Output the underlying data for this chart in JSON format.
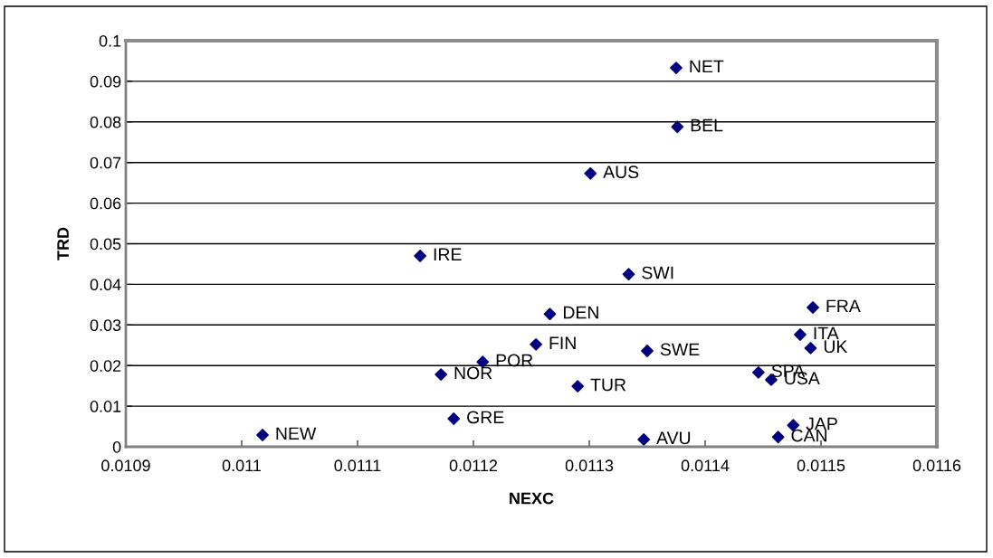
{
  "chart_data": {
    "type": "scatter",
    "xlabel": "NEXC",
    "ylabel": "TRD",
    "x": [
      0.011018,
      0.011154,
      0.011172,
      0.011183,
      0.011208,
      0.011254,
      0.011266,
      0.011301,
      0.01129,
      0.011334,
      0.011347,
      0.01135,
      0.011375,
      0.011376,
      0.011446,
      0.011457,
      0.011463,
      0.011476,
      0.011482,
      0.011491,
      0.011493
    ],
    "series": [
      {
        "color": "#000080",
        "values": [
          0.0029,
          0.047,
          0.0178,
          0.0069,
          0.0209,
          0.0252,
          0.0327,
          0.0673,
          0.0149,
          0.0425,
          0.0018,
          0.0236,
          0.0933,
          0.0788,
          0.0183,
          0.0165,
          0.0024,
          0.0053,
          0.0276,
          0.0243,
          0.0343
        ]
      }
    ],
    "annotations": [
      {
        "text": "NEW",
        "x": 0.011018,
        "y": 0.0029
      },
      {
        "text": "IRE",
        "x": 0.011154,
        "y": 0.047
      },
      {
        "text": "NOR",
        "x": 0.011172,
        "y": 0.0178
      },
      {
        "text": "GRE",
        "x": 0.011183,
        "y": 0.0069
      },
      {
        "text": "POR",
        "x": 0.011208,
        "y": 0.0209
      },
      {
        "text": "FIN",
        "x": 0.011254,
        "y": 0.0252
      },
      {
        "text": "DEN",
        "x": 0.011266,
        "y": 0.0327
      },
      {
        "text": "AUS",
        "x": 0.011301,
        "y": 0.0673
      },
      {
        "text": "TUR",
        "x": 0.01129,
        "y": 0.0149
      },
      {
        "text": "SWI",
        "x": 0.011334,
        "y": 0.0425
      },
      {
        "text": "AVU",
        "x": 0.011347,
        "y": 0.0018
      },
      {
        "text": "SWE",
        "x": 0.01135,
        "y": 0.0236
      },
      {
        "text": "NET",
        "x": 0.011375,
        "y": 0.0933
      },
      {
        "text": "BEL",
        "x": 0.011376,
        "y": 0.0788
      },
      {
        "text": "SPA",
        "x": 0.011446,
        "y": 0.0183
      },
      {
        "text": "USA",
        "x": 0.011457,
        "y": 0.0165
      },
      {
        "text": "CAN",
        "x": 0.011463,
        "y": 0.0024
      },
      {
        "text": "JAP",
        "x": 0.011476,
        "y": 0.0053
      },
      {
        "text": "ITA",
        "x": 0.011482,
        "y": 0.0276
      },
      {
        "text": "UK",
        "x": 0.011491,
        "y": 0.0243
      },
      {
        "text": "FRA",
        "x": 0.011493,
        "y": 0.0343
      }
    ],
    "xlim": [
      0.0109,
      0.0116
    ],
    "xticks": [
      0.0109,
      0.011,
      0.0111,
      0.0112,
      0.0113,
      0.0114,
      0.0115,
      0.0116
    ],
    "ylim": [
      0,
      0.1
    ],
    "yticks": [
      0,
      0.01,
      0.02,
      0.03,
      0.04,
      0.05,
      0.06,
      0.07,
      0.08,
      0.09,
      0.1
    ],
    "grid": "y",
    "marker": "diamond",
    "legend": false
  }
}
